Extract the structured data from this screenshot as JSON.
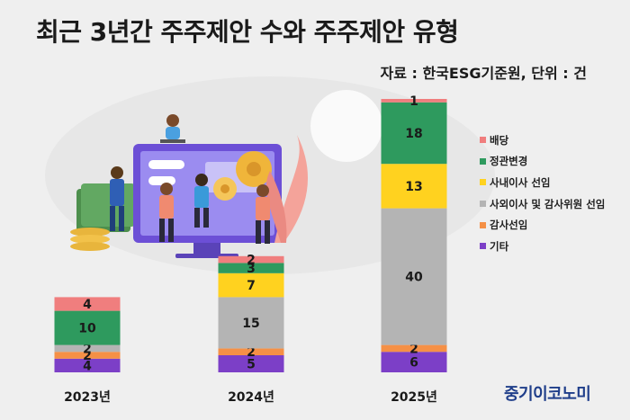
{
  "title": "최근 3년간 주주제안 수와 주주제안 유형",
  "source": "자료 : 한국ESG기준원, 단위 : 건",
  "logo": "중기이코노미",
  "colors": {
    "dividend": "#f07e7e",
    "articles": "#2e9a5e",
    "inside_director": "#ffd21f",
    "outside_director": "#b4b4b4",
    "auditor": "#f59046",
    "other": "#7c3fc7",
    "background": "#efefef"
  },
  "chart_data": {
    "type": "bar",
    "stacked": true,
    "categories": [
      "2023년",
      "2024년",
      "2025년"
    ],
    "series": [
      {
        "name": "기타",
        "color": "#7c3fc7",
        "values": [
          4,
          5,
          6
        ]
      },
      {
        "name": "감사선임",
        "color": "#f59046",
        "values": [
          2,
          2,
          2
        ]
      },
      {
        "name": "사외이사 및 감사위원 선임",
        "color": "#b4b4b4",
        "values": [
          2,
          15,
          40
        ]
      },
      {
        "name": "사내이사 선임",
        "color": "#ffd21f",
        "values": [
          0,
          7,
          13
        ]
      },
      {
        "name": "정관변경",
        "color": "#2e9a5e",
        "values": [
          10,
          3,
          18
        ]
      },
      {
        "name": "배당",
        "color": "#f07e7e",
        "values": [
          4,
          2,
          1
        ]
      }
    ],
    "legend": [
      "배당",
      "정관변경",
      "사내이사 선임",
      "사외이사 및 감사위원 선임",
      "감사선임",
      "기타"
    ],
    "legend_position": "right",
    "ylim": [
      0,
      80
    ],
    "grid": false
  }
}
